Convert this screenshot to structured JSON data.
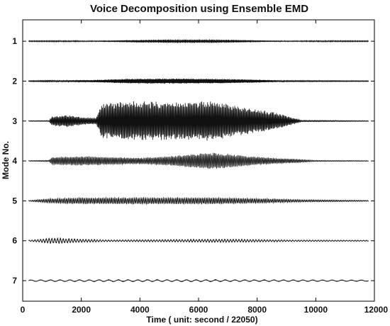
{
  "chart_data": {
    "type": "line",
    "title": "Voice Decomposition using Ensemble EMD",
    "xlabel": "Time ( unit: second / 22050)",
    "ylabel": "Mode No.",
    "xlim": [
      0,
      12000
    ],
    "xticks": [
      0,
      2000,
      4000,
      6000,
      8000,
      10000,
      12000
    ],
    "grid": false,
    "series": [
      {
        "name": "1",
        "envelope": [
          [
            200,
            0.3
          ],
          [
            2500,
            0.5
          ],
          [
            3500,
            1.5
          ],
          [
            5000,
            2.5
          ],
          [
            6500,
            2.5
          ],
          [
            7800,
            1.5
          ],
          [
            9000,
            0.5
          ],
          [
            11800,
            0.3
          ]
        ],
        "cycles": 1400
      },
      {
        "name": "2",
        "envelope": [
          [
            200,
            0.4
          ],
          [
            2500,
            1.5
          ],
          [
            3500,
            3
          ],
          [
            5000,
            3.5
          ],
          [
            6800,
            3
          ],
          [
            8000,
            2
          ],
          [
            9000,
            0.6
          ],
          [
            11800,
            0.4
          ]
        ],
        "cycles": 700
      },
      {
        "name": "3",
        "envelope": [
          [
            200,
            0.5
          ],
          [
            900,
            0.6
          ],
          [
            1000,
            6
          ],
          [
            1500,
            8
          ],
          [
            2000,
            5
          ],
          [
            2500,
            4
          ],
          [
            2700,
            22
          ],
          [
            3500,
            26
          ],
          [
            4500,
            25
          ],
          [
            5500,
            24
          ],
          [
            6500,
            26
          ],
          [
            7500,
            18
          ],
          [
            8500,
            12
          ],
          [
            9000,
            7
          ],
          [
            9500,
            1
          ],
          [
            11800,
            0.5
          ]
        ],
        "cycles": 350
      },
      {
        "name": "4",
        "envelope": [
          [
            200,
            0.5
          ],
          [
            900,
            1
          ],
          [
            1000,
            5
          ],
          [
            2000,
            6
          ],
          [
            3000,
            5
          ],
          [
            4000,
            4
          ],
          [
            5000,
            6
          ],
          [
            5800,
            9
          ],
          [
            6500,
            11
          ],
          [
            7000,
            9
          ],
          [
            7800,
            6
          ],
          [
            8500,
            4
          ],
          [
            9500,
            2
          ],
          [
            10000,
            0.8
          ],
          [
            11800,
            0.5
          ]
        ],
        "cycles": 260
      },
      {
        "name": "5",
        "envelope": [
          [
            200,
            0.4
          ],
          [
            1000,
            3
          ],
          [
            2000,
            4
          ],
          [
            4500,
            4
          ],
          [
            6500,
            4
          ],
          [
            8000,
            3
          ],
          [
            9500,
            1.5
          ],
          [
            11800,
            0.6
          ]
        ],
        "cycles": 190
      },
      {
        "name": "6",
        "envelope": [
          [
            200,
            0.5
          ],
          [
            1000,
            3.5
          ],
          [
            2000,
            2
          ],
          [
            3000,
            1
          ],
          [
            5000,
            1.5
          ],
          [
            7000,
            2
          ],
          [
            9000,
            1
          ],
          [
            11800,
            0.6
          ]
        ],
        "cycles": 120
      },
      {
        "name": "7",
        "envelope": [
          [
            200,
            1
          ],
          [
            3000,
            1.2
          ],
          [
            6000,
            1.2
          ],
          [
            9000,
            1
          ],
          [
            11800,
            0.8
          ]
        ],
        "cycles": 35
      }
    ]
  }
}
